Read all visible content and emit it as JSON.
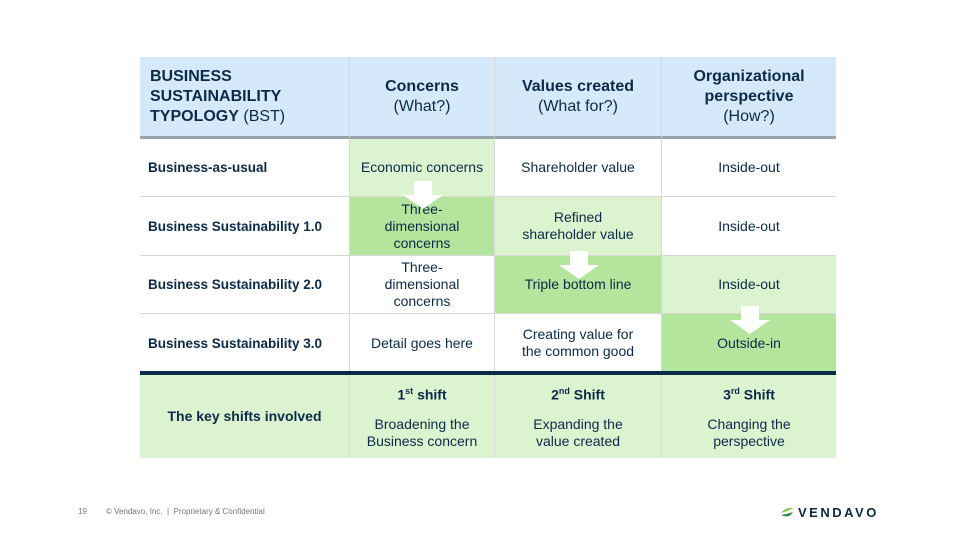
{
  "header": {
    "col0": {
      "bold": "BUSINESS SUSTAINABILITY TYPOLOGY",
      "suffix": "(BST)"
    },
    "col1": {
      "title": "Concerns",
      "sub": "(What?)"
    },
    "col2": {
      "title": "Values created",
      "sub": "(What for?)"
    },
    "col3": {
      "title": "Organizational perspective",
      "sub": "(How?)"
    }
  },
  "rows": [
    {
      "label": "Business-as-usual",
      "concerns": "Economic concerns",
      "values": "Shareholder value",
      "perspective": "Inside-out"
    },
    {
      "label": "Business Sustainability 1.0",
      "concerns": "Three-dimensional concerns",
      "values": "Refined shareholder value",
      "perspective": "Inside-out"
    },
    {
      "label": "Business Sustainability 2.0",
      "concerns": "Three-dimensional concerns",
      "values": "Triple bottom line",
      "perspective": "Inside-out"
    },
    {
      "label": "Business Sustainability 3.0",
      "concerns": "Detail goes here",
      "values": "Creating value for the common good",
      "perspective": "Outside-in"
    }
  ],
  "shifts": {
    "label": "The key shifts involved",
    "items": [
      {
        "num": "1",
        "sup": "st",
        "word": "shift",
        "desc": "Broadening the Business concern"
      },
      {
        "num": "2",
        "sup": "nd",
        "word": "Shift",
        "desc": "Expanding the value created"
      },
      {
        "num": "3",
        "sup": "rd",
        "word": "Shift",
        "desc": "Changing the perspective"
      }
    ]
  },
  "footer": {
    "page": "19",
    "copyright": "© Vendavo, Inc.  |  Proprietary & Confidential",
    "logo": "VENDAVO"
  },
  "colors": {
    "header_bg": "#d6e9fb",
    "light_green": "#dcf3cf",
    "strong_green": "#b4e59c",
    "navy": "#0b2a4a"
  }
}
